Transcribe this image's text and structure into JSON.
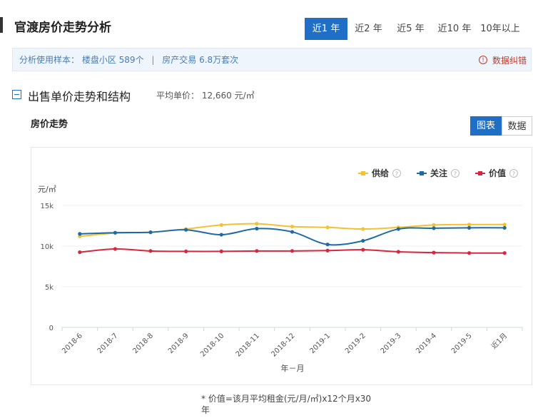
{
  "header": {
    "title": "官渡房价走势分析"
  },
  "tabs": [
    {
      "label": "近1 年",
      "active": true
    },
    {
      "label": "近2 年",
      "active": false
    },
    {
      "label": "近5 年",
      "active": false
    },
    {
      "label": "近10 年",
      "active": false
    },
    {
      "label": "10年以上",
      "active": false
    }
  ],
  "info": {
    "sample_label": "分析使用样本：",
    "community": "楼盘小区 589个",
    "separator": "|",
    "transactions": "房产交易 6.8万套次",
    "report_error": "数据纠错",
    "report_icon": "!"
  },
  "section": {
    "title": "出售单价走势和结构",
    "avg_price": "平均单价： 12,660 元/㎡"
  },
  "chart_panel": {
    "title": "房价走势",
    "view_chart": "图表",
    "view_data": "数据"
  },
  "chart_data": {
    "type": "line",
    "ylabel": "元/㎡",
    "xlabel": "年－月",
    "ylim": [
      0,
      15000
    ],
    "yticks": [
      0,
      5000,
      10000,
      15000
    ],
    "ytick_labels": [
      "0",
      "5k",
      "10k",
      "15k"
    ],
    "grid": true,
    "legend_position": "top-right",
    "categories": [
      "2018-6",
      "2018-7",
      "2018-8",
      "2018-9",
      "2018-10",
      "2018-11",
      "2018-12",
      "2019-1",
      "2019-2",
      "2019-3",
      "2019-4",
      "2019-5",
      "近1月"
    ],
    "series": [
      {
        "name": "供给",
        "color": "#f4c133",
        "values": [
          11200,
          11600,
          11700,
          12100,
          12600,
          12750,
          12400,
          12300,
          12100,
          12300,
          12600,
          12650,
          12650
        ]
      },
      {
        "name": "关注",
        "color": "#1f6aa5",
        "values": [
          11500,
          11650,
          11700,
          12000,
          11400,
          12150,
          11750,
          10200,
          10650,
          12100,
          12200,
          12250,
          12250
        ]
      },
      {
        "name": "价值",
        "color": "#d7263d",
        "values": [
          9250,
          9650,
          9400,
          9350,
          9350,
          9400,
          9400,
          9450,
          9550,
          9300,
          9200,
          9150,
          9150
        ]
      }
    ]
  },
  "footnote": "* 价值=该月平均租金(元/月/㎡)x12个月x30年"
}
